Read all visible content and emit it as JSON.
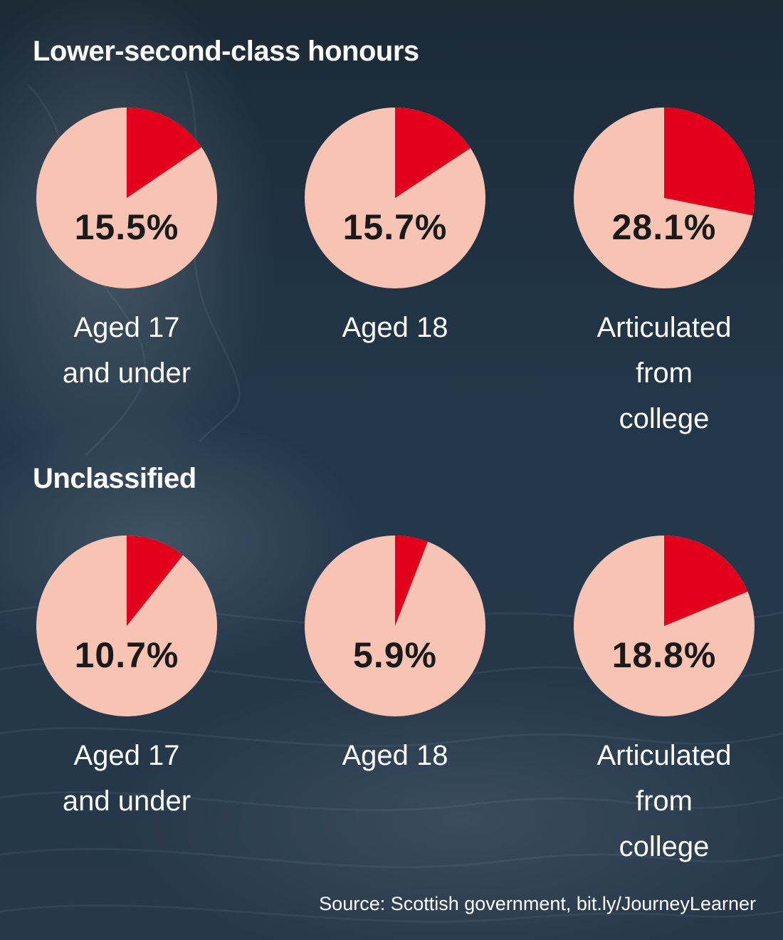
{
  "colors": {
    "slice": "#e3001b",
    "remainder": "#f7c3b3",
    "value_text": "#1a1a1a",
    "label_text": "#ffffff",
    "background": "#1f3140"
  },
  "sections": [
    {
      "title": "Lower-second-class honours",
      "pies": [
        {
          "value_label": "15.5%",
          "label": "Aged 17\nand under"
        },
        {
          "value_label": "15.7%",
          "label": "Aged 18"
        },
        {
          "value_label": "28.1%",
          "label": "Articulated\nfrom\ncollege"
        }
      ]
    },
    {
      "title": "Unclassified",
      "pies": [
        {
          "value_label": "10.7%",
          "label": "Aged 17\nand under"
        },
        {
          "value_label": "5.9%",
          "label": "Aged 18"
        },
        {
          "value_label": "18.8%",
          "label": "Articulated\nfrom\ncollege"
        }
      ]
    }
  ],
  "source": "Source: Scottish government, bit.ly/JourneyLearner",
  "chart_data": [
    {
      "type": "pie",
      "title": "Lower-second-class honours",
      "categories": [
        "Aged 17 and under",
        "Aged 18",
        "Articulated from college"
      ],
      "values": [
        15.5,
        15.7,
        28.1
      ],
      "unit": "%"
    },
    {
      "type": "pie",
      "title": "Unclassified",
      "categories": [
        "Aged 17 and under",
        "Aged 18",
        "Articulated from college"
      ],
      "values": [
        10.7,
        5.9,
        18.8
      ],
      "unit": "%"
    }
  ]
}
